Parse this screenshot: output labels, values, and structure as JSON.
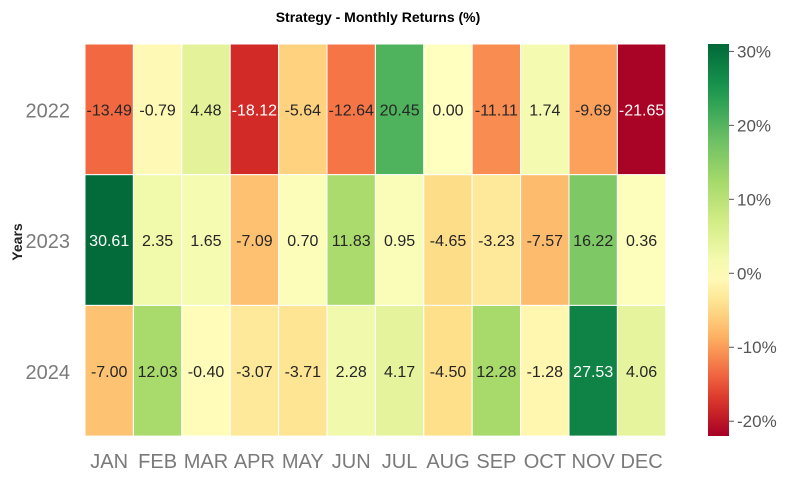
{
  "chart_data": {
    "type": "heatmap",
    "title": "Strategy - Monthly Returns (%)",
    "ylabel": "Years",
    "xlabel": "",
    "columns": [
      "JAN",
      "FEB",
      "MAR",
      "APR",
      "MAY",
      "JUN",
      "JUL",
      "AUG",
      "SEP",
      "OCT",
      "NOV",
      "DEC"
    ],
    "rows": [
      "2022",
      "2023",
      "2024"
    ],
    "values": [
      [
        -13.49,
        -0.79,
        4.48,
        -18.12,
        -5.64,
        -12.64,
        20.45,
        0.0,
        -11.11,
        1.74,
        -9.69,
        -21.65
      ],
      [
        30.61,
        2.35,
        1.65,
        -7.09,
        0.7,
        11.83,
        0.95,
        -4.65,
        -3.23,
        -7.57,
        16.22,
        0.36
      ],
      [
        -7.0,
        12.03,
        -0.4,
        -3.07,
        -3.71,
        2.28,
        4.17,
        -4.5,
        12.28,
        -1.28,
        27.53,
        4.06
      ]
    ],
    "value_labels": [
      [
        "-13.49",
        "-0.79",
        "4.48",
        "-18.12",
        "-5.64",
        "-12.64",
        "20.45",
        "0.00",
        "-11.11",
        "1.74",
        "-9.69",
        "-21.65"
      ],
      [
        "30.61",
        "2.35",
        "1.65",
        "-7.09",
        "0.70",
        "11.83",
        "0.95",
        "-4.65",
        "-3.23",
        "-7.57",
        "16.22",
        "0.36"
      ],
      [
        "-7.00",
        "12.03",
        "-0.40",
        "-3.07",
        "-3.71",
        "2.28",
        "4.17",
        "-4.50",
        "12.28",
        "-1.28",
        "27.53",
        "4.06"
      ]
    ],
    "colorbar": {
      "colormap": "RdYlGn",
      "range": [
        -22,
        31
      ],
      "ticks": [
        30,
        20,
        10,
        0,
        -10,
        -20
      ],
      "tick_labels": [
        "30%",
        "20%",
        "10%",
        "0%",
        "-10%",
        "-20%"
      ],
      "position": "right"
    },
    "grid": false
  }
}
